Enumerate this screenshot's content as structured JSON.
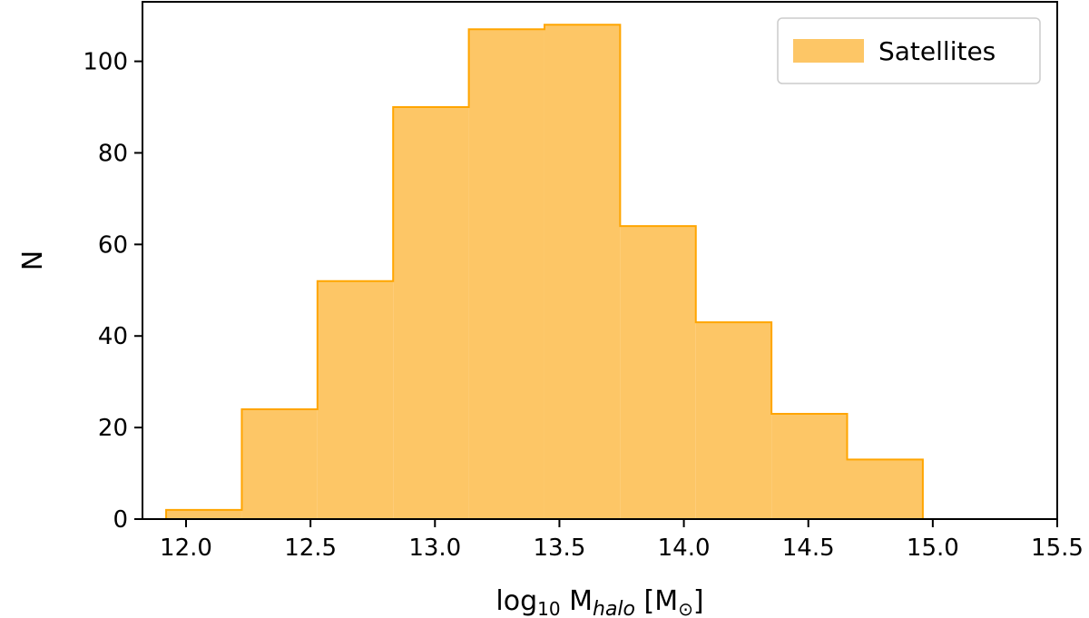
{
  "chart_data": {
    "type": "histogram",
    "title": "",
    "xlabel": {
      "prefix": "log",
      "prefix_sub": "10",
      "main": " M",
      "main_sub": "halo",
      "suffix_open": " [M",
      "suffix_sub": "⊙",
      "suffix_close": "]"
    },
    "ylabel": "N",
    "xlim": [
      11.825,
      15.5
    ],
    "ylim": [
      0,
      113
    ],
    "xticks": [
      "12.0",
      "12.5",
      "13.0",
      "13.5",
      "14.0",
      "14.5",
      "15.0",
      "15.5"
    ],
    "yticks": [
      "0",
      "20",
      "40",
      "60",
      "80",
      "100"
    ],
    "bin_edges": [
      11.92,
      12.224,
      12.528,
      12.832,
      13.136,
      13.44,
      13.744,
      14.048,
      14.352,
      14.656,
      14.96
    ],
    "series": [
      {
        "name": "Satellites",
        "values": [
          2,
          24,
          52,
          90,
          107,
          108,
          64,
          43,
          23,
          13
        ],
        "color": "#fdc666",
        "edge_color": "#ffa500"
      }
    ],
    "legend": {
      "position": "top-right",
      "entries": [
        "Satellites"
      ]
    },
    "grid": false
  }
}
